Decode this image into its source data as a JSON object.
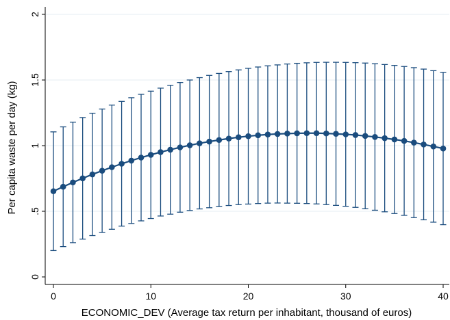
{
  "chart_data": {
    "type": "scatter",
    "title": "",
    "xlabel": "ECONOMIC_DEV (Average tax return per inhabitant, thousand of euros)",
    "ylabel": "Per capita waste per day (kg)",
    "xlim": [
      0,
      40
    ],
    "ylim": [
      0,
      2
    ],
    "xticks": [
      0,
      10,
      20,
      30,
      40
    ],
    "xtick_labels": [
      "0",
      "10",
      "20",
      "30",
      "40"
    ],
    "yticks": [
      0,
      0.5,
      1,
      1.5,
      2
    ],
    "ytick_labels": [
      "0",
      ".5",
      "1",
      "1.5",
      "2"
    ],
    "grid": "horizontal",
    "legend": "none",
    "series": [
      {
        "x": [
          0,
          1,
          2,
          3,
          4,
          5,
          6,
          7,
          8,
          9,
          10,
          11,
          12,
          13,
          14,
          15,
          16,
          17,
          18,
          19,
          20,
          21,
          22,
          23,
          24,
          25,
          26,
          27,
          28,
          29,
          30,
          31,
          32,
          33,
          34,
          35,
          36,
          37,
          38,
          39,
          40
        ],
        "y": [
          0.653,
          0.687,
          0.72,
          0.751,
          0.781,
          0.809,
          0.836,
          0.862,
          0.886,
          0.909,
          0.93,
          0.951,
          0.969,
          0.987,
          1.003,
          1.018,
          1.031,
          1.043,
          1.054,
          1.064,
          1.072,
          1.079,
          1.085,
          1.089,
          1.092,
          1.094,
          1.095,
          1.095,
          1.093,
          1.09,
          1.086,
          1.081,
          1.074,
          1.066,
          1.057,
          1.047,
          1.036,
          1.023,
          1.009,
          0.994,
          0.978
        ],
        "ci_upper": [
          1.105,
          1.143,
          1.179,
          1.214,
          1.247,
          1.279,
          1.309,
          1.337,
          1.365,
          1.391,
          1.415,
          1.438,
          1.46,
          1.481,
          1.5,
          1.518,
          1.535,
          1.55,
          1.564,
          1.577,
          1.589,
          1.599,
          1.608,
          1.615,
          1.622,
          1.627,
          1.631,
          1.634,
          1.635,
          1.635,
          1.634,
          1.632,
          1.629,
          1.624,
          1.618,
          1.611,
          1.603,
          1.594,
          1.583,
          1.571,
          1.558
        ],
        "ci_lower": [
          0.201,
          0.231,
          0.261,
          0.288,
          0.315,
          0.339,
          0.363,
          0.387,
          0.407,
          0.427,
          0.445,
          0.464,
          0.478,
          0.493,
          0.506,
          0.518,
          0.527,
          0.536,
          0.544,
          0.551,
          0.555,
          0.559,
          0.562,
          0.563,
          0.562,
          0.561,
          0.559,
          0.556,
          0.551,
          0.545,
          0.538,
          0.53,
          0.519,
          0.508,
          0.496,
          0.483,
          0.469,
          0.452,
          0.435,
          0.417,
          0.398
        ]
      }
    ],
    "colors": {
      "series": "#1a4c7e",
      "axis": "#000000",
      "grid": "#e6eef3",
      "background": "#ffffff"
    }
  }
}
